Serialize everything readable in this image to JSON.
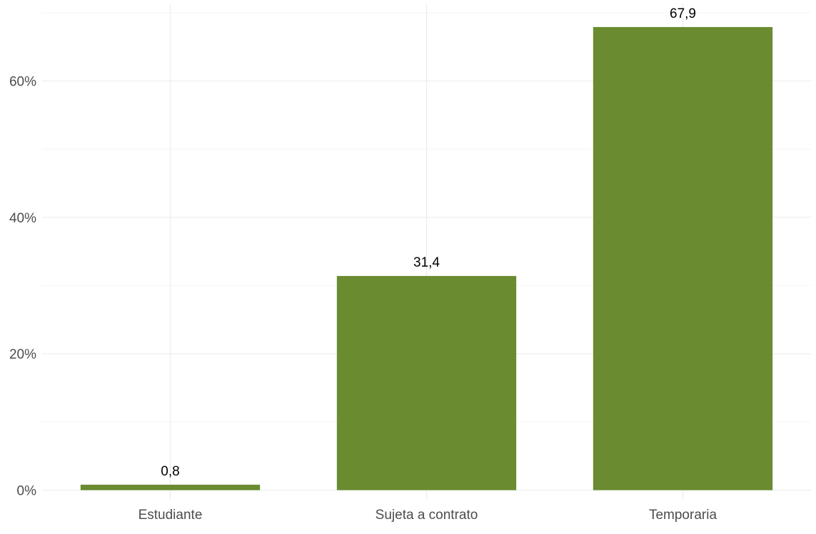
{
  "chart_data": {
    "type": "bar",
    "categories": [
      "Estudiante",
      "Sujeta a contrato",
      "Temporaria"
    ],
    "values": [
      0.8,
      31.4,
      67.9
    ],
    "value_labels": [
      "0,8",
      "31,4",
      "67,9"
    ],
    "title": "",
    "xlabel": "",
    "ylabel": "",
    "ylim": [
      0,
      70
    ],
    "y_ticks": [
      0,
      20,
      40,
      60
    ],
    "y_tick_labels": [
      "0%",
      "20%",
      "40%",
      "60%"
    ],
    "grid": true,
    "bar_color": "#6a8b2f"
  }
}
